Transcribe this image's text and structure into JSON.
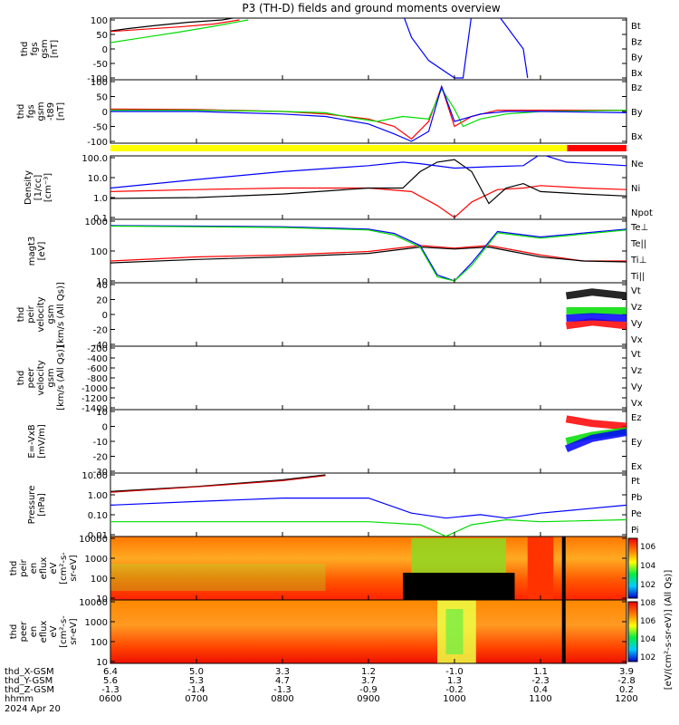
{
  "title": "P3 (TH-D) fields and ground moments overview",
  "date_label": "2024 Apr 20",
  "colorbar": {
    "label": "[eV/(cm²-s-sr-eV)] (All Qs)]",
    "ticks_top": [
      "10^6",
      "10^4",
      "10^2"
    ],
    "ticks_bottom": [
      "10^8",
      "10^6",
      "10^4",
      "10^2"
    ]
  },
  "x_axis": {
    "row_labels": [
      "thd_X-GSM",
      "thd_Y-GSM",
      "thd_Z-GSM",
      "hhmm"
    ],
    "rows": [
      [
        "6.4",
        "5.0",
        "3.3",
        "1.2",
        "-1.0",
        "1.1",
        "3.9"
      ],
      [
        "5.6",
        "5.3",
        "4.7",
        "3.7",
        "1.3",
        "-2.3",
        "-2.8"
      ],
      [
        "-1.3",
        "-1.4",
        "-1.3",
        "-0.9",
        "-0.2",
        "0.4",
        "0.2"
      ],
      [
        "0600",
        "0700",
        "0800",
        "0900",
        "1000",
        "1100",
        "1200"
      ]
    ]
  },
  "mode_bar": {
    "segments": [
      {
        "start": 0,
        "end": 0.885,
        "color": "#ffff00"
      },
      {
        "start": 0.885,
        "end": 1,
        "color": "#ff0000"
      }
    ]
  },
  "panels": [
    {
      "ylabel": [
        "thd",
        "fgs",
        "gsm",
        "[nT]"
      ],
      "ticks": [
        "100",
        "50",
        "0",
        "-50",
        "-100"
      ],
      "legend": [
        {
          "text": "Bt",
          "color": "#000000"
        },
        {
          "text": "Bz",
          "color": "#ff0000"
        },
        {
          "text": "By",
          "color": "#00dd00"
        },
        {
          "text": "Bx",
          "color": "#0000ff"
        }
      ]
    },
    {
      "ylabel": [
        "thd",
        "fgs",
        "gsm",
        "-t89",
        "[nT]"
      ],
      "ticks": [
        "100",
        "50",
        "0",
        "-50",
        "-100"
      ],
      "legend": [
        {
          "text": "Bz",
          "color": "#ff0000"
        },
        {
          "text": "By",
          "color": "#00dd00"
        },
        {
          "text": "Bx",
          "color": "#0000ff"
        }
      ]
    },
    {
      "ylabel": [
        "Density",
        "[1/cc]",
        "[cm⁻³]"
      ],
      "ticks": [
        "100.0",
        "10.0",
        "1.0",
        "0.1"
      ],
      "legend": [
        {
          "text": "Ne",
          "color": "#ff0000"
        },
        {
          "text": "Ni",
          "color": "#000000"
        },
        {
          "text": "Npot",
          "color": "#0000ff"
        }
      ]
    },
    {
      "ylabel": [
        "magt3",
        "[eV]"
      ],
      "ticks": [
        "1000",
        "100",
        "10"
      ],
      "legend": [
        {
          "text": "Te⊥",
          "color": "#ff0000"
        },
        {
          "text": "Te||",
          "color": "#000000"
        },
        {
          "text": "Ti⊥",
          "color": "#00dd00"
        },
        {
          "text": "Ti||",
          "color": "#00dd00"
        }
      ]
    },
    {
      "ylabel": [
        "thd",
        "peir",
        "velocity",
        "gsm",
        "[km/s (All Qs)]"
      ],
      "ticks": [
        "40",
        "20",
        "0",
        "-20",
        "-40"
      ],
      "legend": [
        {
          "text": "Vt",
          "color": "#000000"
        },
        {
          "text": "Vz",
          "color": "#ff0000"
        },
        {
          "text": "Vy",
          "color": "#00dd00"
        },
        {
          "text": "Vx",
          "color": "#0000ff"
        }
      ]
    },
    {
      "ylabel": [
        "thd",
        "peer",
        "velocity",
        "gsm",
        "[km/s (All Qs)]"
      ],
      "ticks": [
        "-200",
        "-400",
        "-600",
        "-800",
        "-1000",
        "-1200",
        "-1400"
      ],
      "legend": [
        {
          "text": "Vt",
          "color": "#000000"
        },
        {
          "text": "Vz",
          "color": "#ff0000"
        },
        {
          "text": "Vy",
          "color": "#00dd00"
        },
        {
          "text": "Vx",
          "color": "#0000ff"
        }
      ]
    },
    {
      "ylabel": [
        "E=-VxB",
        "[mV/m]"
      ],
      "ticks": [
        "10",
        "0",
        "-10",
        "-20",
        "-30"
      ],
      "legend": [
        {
          "text": "Ez",
          "color": "#ff0000"
        },
        {
          "text": "Ey",
          "color": "#00dd00"
        },
        {
          "text": "Ex",
          "color": "#0000ff"
        }
      ]
    },
    {
      "ylabel": [
        "Pressure",
        "[nPa]"
      ],
      "ticks": [
        "10.00",
        "1.00",
        "0.10",
        "0.01"
      ],
      "legend": [
        {
          "text": "Pt",
          "color": "#000000"
        },
        {
          "text": "Pb",
          "color": "#ff0000"
        },
        {
          "text": "Pe",
          "color": "#00dd00"
        },
        {
          "text": "Pi",
          "color": "#0000ff"
        }
      ]
    },
    {
      "ylabel": [
        "thd",
        "peir",
        "en",
        "eflux",
        "eV",
        "[cm²-s-",
        "sr-eV]"
      ],
      "ticks": [
        "10000",
        "1000",
        "100",
        "10"
      ],
      "legend": []
    },
    {
      "ylabel": [
        "thd",
        "peer",
        "en",
        "eflux",
        "eV",
        "[cm²-s-",
        "sr-eV]"
      ],
      "ticks": [
        "10000",
        "1000",
        "100",
        "10"
      ],
      "legend": []
    }
  ],
  "chart_data": {
    "type": "line",
    "title": "P3 (TH-D) fields and ground moments overview",
    "x_time_hhmm": [
      "0600",
      "0700",
      "0800",
      "0900",
      "1000",
      "1100",
      "1200"
    ],
    "panels": [
      {
        "id": "fgs_gsm",
        "ylim": [
          -100,
          100
        ],
        "series": [
          {
            "name": "Bt",
            "x": [
              0,
              0.2,
              0.5,
              0.9,
              1.3,
              1.5
            ],
            "y": [
              62,
              70,
              80,
              92,
              100,
              110
            ]
          },
          {
            "name": "Bz",
            "x": [
              0,
              0.4,
              0.8,
              1.2,
              1.5
            ],
            "y": [
              60,
              68,
              76,
              86,
              100
            ]
          },
          {
            "name": "By",
            "x": [
              0,
              0.4,
              0.8,
              1.2,
              1.6
            ],
            "y": [
              22,
              40,
              58,
              78,
              100
            ]
          },
          {
            "name": "Bx",
            "x": [
              3.4,
              3.5,
              3.7,
              4.0,
              4.1,
              4.2,
              4.5,
              4.8,
              4.85
            ],
            "y": [
              120,
              40,
              -40,
              -100,
              -100,
              120,
              120,
              0,
              -100
            ]
          }
        ]
      },
      {
        "id": "fgs_gsm_t89",
        "ylim": [
          -120,
          120
        ],
        "series": [
          {
            "name": "Bz",
            "x": [
              0,
              1,
              2,
              2.5,
              3.0,
              3.3,
              3.5,
              3.7,
              3.85,
              4.0,
              4.2,
              4.5,
              5.0,
              6.0
            ],
            "y": [
              10,
              8,
              0,
              -10,
              -30,
              -60,
              -110,
              -40,
              100,
              -60,
              -20,
              5,
              5,
              5
            ]
          },
          {
            "name": "By",
            "x": [
              0,
              1,
              2,
              2.5,
              2.8,
              3.1,
              3.4,
              3.7,
              3.85,
              4.0,
              4.1,
              4.3,
              4.6,
              5.0,
              6.0
            ],
            "y": [
              5,
              5,
              0,
              -5,
              -25,
              -40,
              -20,
              -30,
              90,
              10,
              -60,
              -30,
              -10,
              0,
              5
            ]
          },
          {
            "name": "Bx",
            "x": [
              0,
              1,
              2,
              2.5,
              3.0,
              3.3,
              3.5,
              3.7,
              3.85,
              4.0,
              4.3,
              4.6,
              5.0,
              6.0
            ],
            "y": [
              0,
              0,
              -10,
              -20,
              -50,
              -90,
              -120,
              -80,
              100,
              -40,
              -10,
              0,
              0,
              -5
            ]
          }
        ]
      },
      {
        "id": "density",
        "ylim_log": [
          0.1,
          100
        ],
        "series": [
          {
            "name": "Ne",
            "x": [
              0,
              1,
              2,
              3,
              3.5,
              3.8,
              4.0,
              4.2,
              4.5,
              4.8,
              5.0,
              5.5,
              6.0
            ],
            "y": [
              2,
              2.5,
              3,
              3,
              2,
              0.4,
              0.1,
              0.6,
              2.5,
              3,
              4,
              3,
              2.5
            ]
          },
          {
            "name": "Ni",
            "x": [
              0,
              1,
              2,
              3,
              3.4,
              3.6,
              3.8,
              4.0,
              4.2,
              4.4,
              4.6,
              4.8,
              5.0,
              5.5,
              6.0
            ],
            "y": [
              0.9,
              1.0,
              1.5,
              3,
              3,
              20,
              60,
              80,
              20,
              0.5,
              3,
              5,
              2,
              1.5,
              1.2
            ]
          },
          {
            "name": "Npot",
            "x": [
              0,
              1,
              2,
              3,
              3.4,
              3.6,
              4.0,
              4.4,
              4.8,
              5.0,
              5.3,
              6.0
            ],
            "y": [
              3,
              8,
              20,
              40,
              60,
              50,
              30,
              35,
              40,
              150,
              60,
              40
            ]
          }
        ]
      },
      {
        "id": "magt3",
        "ylim_log": [
          5,
          5000
        ],
        "series": [
          {
            "name": "Te⊥",
            "x": [
              0,
              1,
              2,
              3,
              3.6,
              4.0,
              4.4,
              5.0,
              5.5,
              6.0
            ],
            "y": [
              50,
              80,
              100,
              150,
              300,
              220,
              300,
              100,
              50,
              50
            ]
          },
          {
            "name": "Te||",
            "x": [
              0,
              1,
              2,
              3,
              3.6,
              4.0,
              4.4,
              5.0,
              5.5,
              6.0
            ],
            "y": [
              40,
              60,
              80,
              120,
              250,
              200,
              250,
              80,
              50,
              45
            ]
          },
          {
            "name": "Ti⊥",
            "x": [
              0,
              1,
              2,
              3,
              3.3,
              3.6,
              3.8,
              4.0,
              4.2,
              4.5,
              5.0,
              6.0
            ],
            "y": [
              3000,
              2800,
              2600,
              2000,
              1200,
              300,
              10,
              5,
              40,
              1500,
              800,
              2000
            ]
          },
          {
            "name": "Ti||",
            "x": [
              0,
              1,
              2,
              3,
              3.3,
              3.6,
              3.8,
              4.0,
              4.2,
              4.5,
              5.0,
              6.0
            ],
            "y": [
              2800,
              2600,
              2400,
              1800,
              1000,
              250,
              8,
              5,
              30,
              1300,
              700,
              1800
            ]
          }
        ]
      },
      {
        "id": "peir_velocity",
        "ylim": [
          -40,
          40
        ],
        "x_start": 5.3,
        "series": [
          {
            "name": "Vt",
            "x": [
              5.3,
              5.6,
              6.0
            ],
            "y": [
              25,
              30,
              25
            ]
          },
          {
            "name": "Vz",
            "x": [
              5.3,
              5.6,
              6.0
            ],
            "y": [
              -15,
              -10,
              -15
            ]
          },
          {
            "name": "Vy",
            "x": [
              5.3,
              5.6,
              6.0
            ],
            "y": [
              5,
              5,
              5
            ]
          },
          {
            "name": "Vx",
            "x": [
              5.3,
              5.6,
              6.0
            ],
            "y": [
              -5,
              -3,
              -5
            ]
          }
        ]
      },
      {
        "id": "peer_velocity",
        "ylim": [
          -1400,
          -200
        ],
        "series": []
      },
      {
        "id": "e_vxb",
        "ylim": [
          -30,
          10
        ],
        "x_start": 5.3,
        "series": [
          {
            "name": "Ez",
            "x": [
              5.3,
              5.6,
              6.0
            ],
            "y": [
              5,
              2,
              0
            ]
          },
          {
            "name": "Ey",
            "x": [
              5.3,
              5.6,
              6.0
            ],
            "y": [
              -10,
              -6,
              -3
            ]
          },
          {
            "name": "Ex",
            "x": [
              5.3,
              5.6,
              6.0
            ],
            "y": [
              -15,
              -8,
              -4
            ]
          }
        ]
      },
      {
        "id": "pressure",
        "ylim_log": [
          0.005,
          20
        ],
        "series": [
          {
            "name": "Pt",
            "x": [
              0,
              1,
              2,
              2.5
            ],
            "y": [
              2,
              4,
              10,
              20
            ]
          },
          {
            "name": "Pb",
            "x": [
              0,
              1,
              2,
              2.5
            ],
            "y": [
              1.8,
              3.8,
              9,
              18
            ]
          },
          {
            "name": "Pe",
            "x": [
              0,
              1,
              2,
              3,
              3.6,
              3.9,
              4.2,
              4.6,
              5.0,
              6.0
            ],
            "y": [
              0.03,
              0.03,
              0.03,
              0.03,
              0.02,
              0.004,
              0.02,
              0.04,
              0.03,
              0.04
            ]
          },
          {
            "name": "Pi",
            "x": [
              0,
              1,
              2,
              3,
              3.5,
              3.9,
              4.3,
              4.6,
              5.0,
              6.0
            ],
            "y": [
              0.3,
              0.5,
              0.8,
              0.8,
              0.1,
              0.05,
              0.08,
              0.05,
              0.1,
              0.3
            ]
          }
        ]
      }
    ]
  }
}
